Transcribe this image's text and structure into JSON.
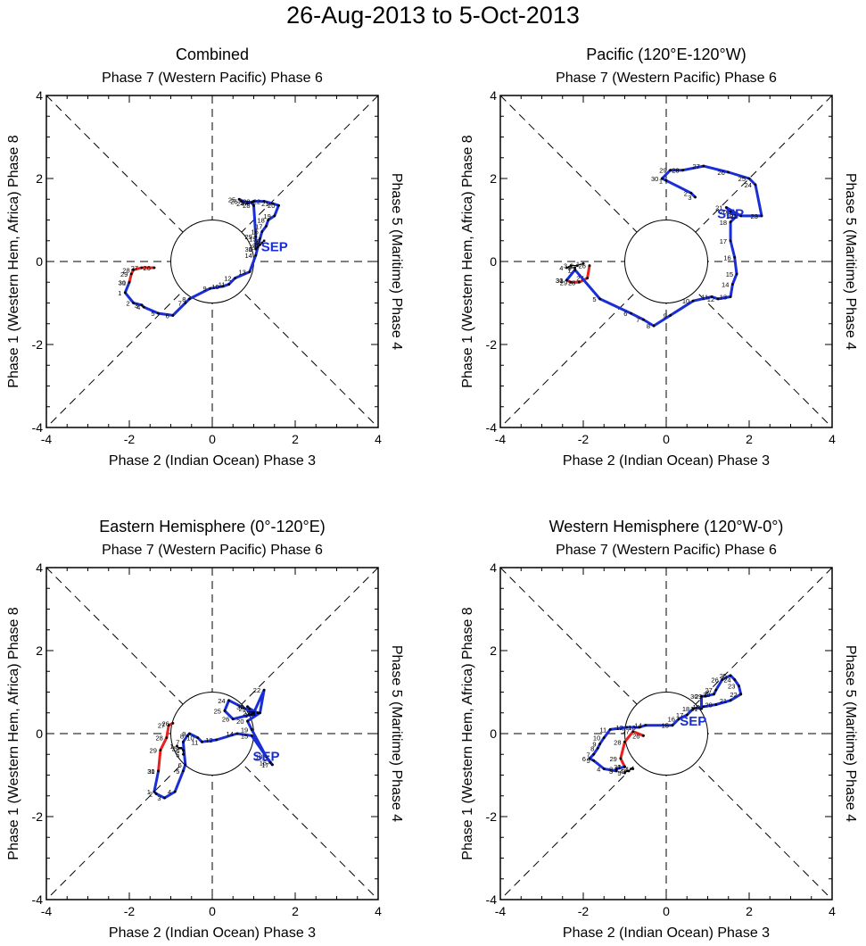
{
  "title": "26-Aug-2013 to 5-Oct-2013",
  "colors": {
    "aug": "#e8201e",
    "sep": "#1a2ed6",
    "oct": "#000000",
    "sep_label": "#1a2ed6"
  },
  "chart_data": [
    {
      "type": "line",
      "id": "combined",
      "title": "Combined",
      "top_label": "Phase 7 (Western Pacific) Phase 6",
      "bottom_label": "Phase 2 (Indian Ocean) Phase 3",
      "left_label": "Phase 1 (Western Hem, Africa) Phase 8",
      "right_label": "Phase 5 (Maritime) Phase 4",
      "xlim": [
        -4,
        4
      ],
      "ylim": [
        -4,
        4
      ],
      "xticks": [
        "-4",
        "-2",
        "0",
        "2",
        "4"
      ],
      "yticks": [
        "-4",
        "-2",
        "0",
        "2",
        "4"
      ],
      "month_label": "SEP",
      "month_label_pos": [
        1.5,
        0.35
      ],
      "series": [
        {
          "name": "Aug",
          "color_key": "aug",
          "x": [
            -1.4,
            -1.7,
            -1.9,
            -1.95,
            -2.0
          ],
          "y": [
            -0.15,
            -0.15,
            -0.2,
            -0.3,
            -0.5
          ],
          "labels": [
            "26",
            "27",
            "28",
            "29",
            "30"
          ]
        },
        {
          "name": "Sep",
          "color_key": "sep",
          "x": [
            -2.0,
            -2.1,
            -1.9,
            -1.7,
            -1.65,
            -1.3,
            -0.95,
            -0.65,
            -0.55,
            -0.05,
            0.25,
            0.4,
            0.55,
            0.9,
            1.05,
            1.15,
            1.2,
            1.3,
            1.35,
            1.5,
            1.6,
            1.45,
            1.25,
            1.0,
            0.85,
            0.65,
            0.7,
            0.95,
            1.0,
            1.05,
            1.05
          ],
          "y": [
            -0.5,
            -0.75,
            -1.0,
            -1.05,
            -1.1,
            -1.25,
            -1.3,
            -1.0,
            -0.9,
            -0.65,
            -0.6,
            -0.55,
            -0.4,
            -0.25,
            0.15,
            0.55,
            0.72,
            0.85,
            1.0,
            1.1,
            1.35,
            1.4,
            1.45,
            1.45,
            1.4,
            1.5,
            1.45,
            1.42,
            1.35,
            0.6,
            0.3
          ],
          "labels": [
            "31",
            "1",
            "2",
            "3",
            "4",
            "5",
            "6",
            "7",
            "8",
            "9",
            "10",
            "11",
            "12",
            "13",
            "14",
            "15",
            "16",
            "17",
            "18",
            "19",
            "20",
            "21",
            "22",
            "23",
            "24",
            "25",
            "26",
            "27",
            "28",
            "29",
            "30"
          ]
        },
        {
          "name": "Oct",
          "color_key": "oct",
          "x": [
            1.05,
            1.1,
            1.15,
            1.2,
            1.25
          ],
          "y": [
            0.3,
            0.35,
            0.4,
            0.45,
            0.5
          ],
          "labels": [
            "1",
            "2",
            "3",
            "4",
            "5"
          ]
        }
      ]
    },
    {
      "type": "line",
      "id": "pacific",
      "title": "Pacific (120°E-120°W)",
      "top_label": "Phase 7 (Western Pacific) Phase 6",
      "bottom_label": "Phase 2 (Indian Ocean) Phase 3",
      "left_label": "Phase 1 (Western Hem, Africa) Phase 8",
      "right_label": "Phase 5 (Maritime) Phase 4",
      "xlim": [
        -4,
        4
      ],
      "ylim": [
        -4,
        4
      ],
      "xticks": [
        "-4",
        "-2",
        "0",
        "2",
        "4"
      ],
      "yticks": [
        "-4",
        "-2",
        "0",
        "2",
        "4"
      ],
      "month_label": "SEP",
      "month_label_pos": [
        1.55,
        1.15
      ],
      "series": [
        {
          "name": "Aug",
          "color_key": "aug",
          "x": [
            -1.85,
            -1.9,
            -2.1,
            -2.3,
            -2.4
          ],
          "y": [
            -0.1,
            -0.4,
            -0.5,
            -0.5,
            -0.45
          ],
          "labels": [
            "26",
            "27",
            "28",
            "29",
            "30"
          ]
        },
        {
          "name": "Sep",
          "color_key": "sep",
          "x": [
            -2.4,
            -2.2,
            -1.6,
            -0.85,
            -0.55,
            -0.3,
            0.1,
            0.65,
            1.1,
            1.25,
            1.55,
            1.6,
            1.7,
            1.65,
            1.55,
            1.55,
            1.7,
            1.55,
            1.45,
            1.8,
            2.3,
            2.15,
            2.0,
            1.5,
            0.9,
            0.4,
            0.1,
            -0.1,
            0.0,
            0.6,
            0.7
          ],
          "y": [
            -0.45,
            -0.2,
            -0.9,
            -1.25,
            -1.4,
            -1.55,
            -1.3,
            -0.95,
            -0.85,
            -0.9,
            -0.85,
            -0.55,
            -0.3,
            0.1,
            0.5,
            0.95,
            1.1,
            1.2,
            1.3,
            1.1,
            1.1,
            1.85,
            2.0,
            2.15,
            2.3,
            2.2,
            2.2,
            2.0,
            1.95,
            1.65,
            1.55
          ],
          "labels": [
            "31",
            "1",
            "5",
            "6",
            "7",
            "8",
            "9",
            "10",
            "11",
            "12",
            "13",
            "14",
            "15",
            "16",
            "17",
            "18",
            "19",
            "20",
            "21",
            "22",
            "23",
            "24",
            "25",
            "26",
            "27",
            "28",
            "29",
            "30",
            "1",
            "2",
            "3"
          ]
        },
        {
          "name": "Oct",
          "color_key": "oct",
          "x": [
            -2.0,
            -2.15,
            -2.3,
            -2.4,
            -2.2
          ],
          "y": [
            -0.05,
            -0.1,
            -0.1,
            -0.15,
            -0.15
          ],
          "labels": [
            "1",
            "2",
            "3",
            "4",
            "5"
          ]
        }
      ]
    },
    {
      "type": "line",
      "id": "eastern",
      "title": "Eastern Hemisphere (0°-120°E)",
      "top_label": "Phase 7 (Western Pacific) Phase 6",
      "bottom_label": "Phase 2 (Indian Ocean) Phase 3",
      "left_label": "Phase 1 (Western Hem, Africa) Phase 8",
      "right_label": "Phase 5 (Maritime) Phase 4",
      "xlim": [
        -4,
        4
      ],
      "ylim": [
        -4,
        4
      ],
      "xticks": [
        "-4",
        "-2",
        "0",
        "2",
        "4"
      ],
      "yticks": [
        "-4",
        "-2",
        "0",
        "2",
        "4"
      ],
      "month_label": "SEP",
      "month_label_pos": [
        1.3,
        -0.55
      ],
      "series": [
        {
          "name": "Aug",
          "color_key": "aug",
          "x": [
            -0.95,
            -1.05,
            -1.1,
            -1.25,
            -1.3
          ],
          "y": [
            0.25,
            0.2,
            -0.1,
            -0.4,
            -0.9
          ],
          "labels": [
            "26",
            "27",
            "28",
            "29",
            "30"
          ]
        },
        {
          "name": "Sep",
          "color_key": "sep",
          "x": [
            -1.3,
            -1.4,
            -1.35,
            -1.15,
            -0.9,
            -0.7,
            -0.65,
            -0.7,
            -0.6,
            -0.55,
            -0.35,
            -0.25,
            0.1,
            0.6,
            0.95,
            1.4,
            1.45,
            1.3,
            0.95,
            0.85,
            1.15,
            1.25,
            1.0,
            0.4,
            0.3,
            0.5,
            1.1,
            1.1,
            0.9,
            0.85,
            0.95
          ],
          "y": [
            -0.9,
            -1.4,
            -1.45,
            -1.55,
            -1.4,
            -0.9,
            -0.75,
            -0.2,
            -0.05,
            0.0,
            -0.1,
            -0.2,
            -0.15,
            0.0,
            -0.05,
            -0.7,
            -0.75,
            -0.55,
            0.1,
            0.3,
            0.5,
            1.05,
            0.5,
            0.8,
            0.55,
            0.35,
            0.5,
            0.5,
            0.6,
            0.65,
            0.45
          ],
          "labels": [
            "31",
            "1",
            "2",
            "3",
            "4",
            "5",
            "6",
            "7",
            "8",
            "9",
            "10",
            "11",
            "12",
            "14",
            "15",
            "16",
            "17",
            "18",
            "19",
            "20",
            "21",
            "22",
            "23",
            "24",
            "25",
            "26",
            "27",
            "28",
            "29",
            "30",
            "1"
          ]
        },
        {
          "name": "Oct",
          "color_key": "oct",
          "x": [
            -0.85,
            -0.8,
            -0.75,
            -0.7,
            -0.7
          ],
          "y": [
            -0.3,
            -0.35,
            -0.35,
            -0.4,
            -0.5
          ],
          "labels": [
            "1",
            "2",
            "3",
            "4",
            "5"
          ]
        }
      ]
    },
    {
      "type": "line",
      "id": "western",
      "title": "Western Hemisphere (120°W-0°)",
      "top_label": "Phase 7 (Western Pacific) Phase 6",
      "bottom_label": "Phase 2 (Indian Ocean) Phase 3",
      "left_label": "Phase 1 (Western Hem, Africa) Phase 8",
      "right_label": "Phase 5 (Maritime) Phase 4",
      "xlim": [
        -4,
        4
      ],
      "ylim": [
        -4,
        4
      ],
      "xticks": [
        "-4",
        "-2",
        "0",
        "2",
        "4"
      ],
      "yticks": [
        "-4",
        "-2",
        "0",
        "2",
        "4"
      ],
      "month_label": "SEP",
      "month_label_pos": [
        0.65,
        0.3
      ],
      "series": [
        {
          "name": "Aug",
          "color_key": "aug",
          "x": [
            -0.55,
            -0.8,
            -1.0,
            -1.1,
            -1.0
          ],
          "y": [
            -0.05,
            0.05,
            -0.2,
            -0.6,
            -0.8
          ],
          "labels": [
            "26",
            "27",
            "28",
            "29",
            "30"
          ]
        },
        {
          "name": "Sep",
          "color_key": "sep",
          "x": [
            -1.0,
            -1.2,
            -1.2,
            -1.5,
            -1.75,
            -1.85,
            -1.75,
            -1.65,
            -1.6,
            -1.5,
            -1.35,
            -0.95,
            -0.65,
            -0.5,
            0.15,
            0.3,
            0.5,
            0.65,
            0.9,
            1.2,
            1.55,
            1.8,
            1.75,
            1.65,
            1.55,
            1.35,
            1.2,
            1.15,
            0.95,
            0.85,
            0.85
          ],
          "y": [
            -0.8,
            -0.85,
            -0.9,
            -0.85,
            -0.65,
            -0.6,
            -0.5,
            -0.35,
            -0.25,
            -0.1,
            0.1,
            0.15,
            0.15,
            0.2,
            0.2,
            0.35,
            0.45,
            0.6,
            0.65,
            0.7,
            0.8,
            0.95,
            1.15,
            1.3,
            1.4,
            1.3,
            1.05,
            0.95,
            0.9,
            0.9,
            0.6
          ],
          "labels": [
            "1",
            "2",
            "3",
            "4",
            "5",
            "6",
            "7",
            "8",
            "9",
            "10",
            "11",
            "12",
            "13",
            "14",
            "15",
            "16",
            "17",
            "18",
            "19",
            "20",
            "21",
            "22",
            "23",
            "24",
            "25",
            "26",
            "27",
            "28",
            "29",
            "30",
            "31"
          ]
        },
        {
          "name": "Oct",
          "color_key": "oct",
          "x": [
            -0.8,
            -0.85,
            -0.9,
            -0.95,
            -1.0
          ],
          "y": [
            -0.85,
            -0.85,
            -0.9,
            -0.9,
            -0.95
          ],
          "labels": [
            "1",
            "2",
            "3",
            "4",
            "5"
          ]
        }
      ]
    }
  ]
}
